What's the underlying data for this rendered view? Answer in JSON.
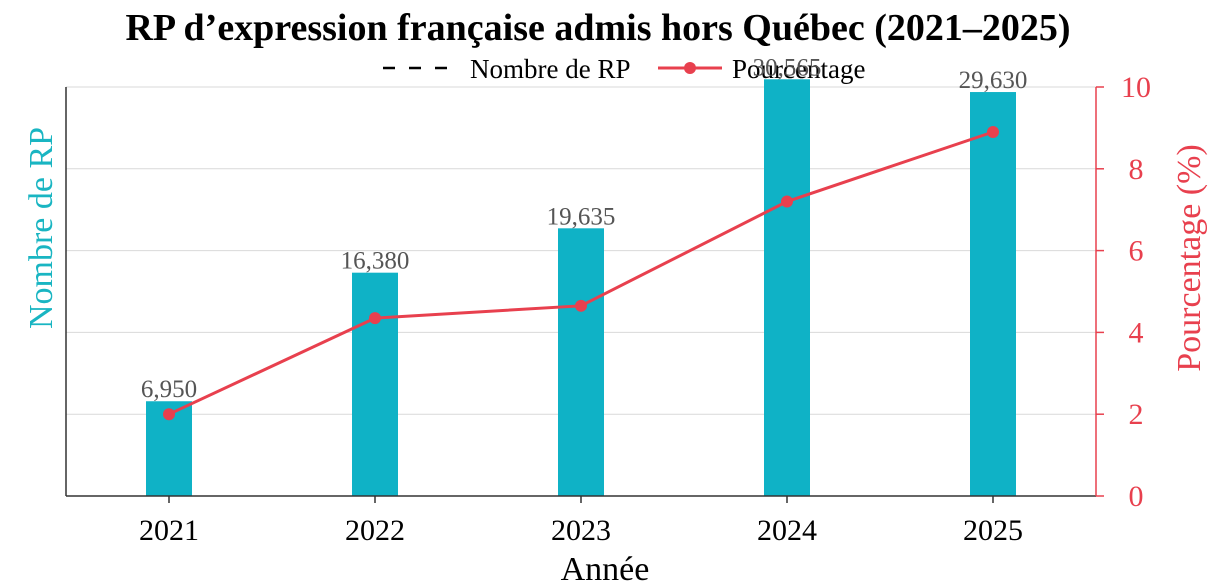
{
  "chart_data": {
    "type": "bar",
    "title": "RP d’expression française admis hors Québec (2021–2025)",
    "xlabel": "Année",
    "ylabel": "Nombre de RP",
    "y2label": "Pourcentage (%)",
    "categories": [
      "2021",
      "2022",
      "2023",
      "2024",
      "2025"
    ],
    "series": [
      {
        "name": "Nombre de RP",
        "type": "bar",
        "axis": "left",
        "values": [
          6950,
          16380,
          19635,
          30565,
          29630
        ],
        "labels": [
          "6,950",
          "16,380",
          "19,635",
          "30,565",
          "29,630"
        ],
        "color": "#0fb2c6"
      },
      {
        "name": "Pourcentage",
        "type": "line",
        "axis": "right",
        "values": [
          2.0,
          4.35,
          4.65,
          7.2,
          8.9
        ],
        "color": "#e8404e"
      }
    ],
    "ylim": [
      0,
      30000
    ],
    "y2lim": [
      0,
      10
    ],
    "y2ticks": [
      "0",
      "2",
      "4",
      "6",
      "8",
      "10"
    ],
    "grid": true,
    "legend_position": "top-center",
    "colors": {
      "bars": "#0fb2c6",
      "line": "#e8404e",
      "left_axis_label": "#19b5c2",
      "right_axis": "#e8404e"
    }
  }
}
